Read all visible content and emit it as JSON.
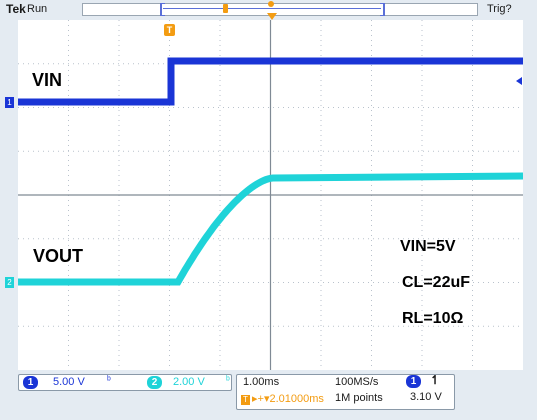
{
  "topbar": {
    "brand": "Tek",
    "run_state": "Run",
    "trigger_state": "Trig?"
  },
  "markers": {
    "trigger_time_marker": "T",
    "ch1_ground": "1",
    "ch2_ground": "2"
  },
  "annotations": {
    "vin_label": "VIN",
    "vout_label": "VOUT",
    "condition_vin": "VIN=5V",
    "condition_cl": "CL=22uF",
    "condition_rl": "RL=10Ω"
  },
  "readout": {
    "ch1": {
      "badge": "1",
      "scale": "5.00 V",
      "bw_symbol": "ᵇ"
    },
    "ch2": {
      "badge": "2",
      "scale": "2.00 V",
      "bw_symbol": "ᵇ"
    },
    "horizontal": {
      "time_div": "1.00ms",
      "sample_rate": "100MS/s",
      "trigger_position": "▸+▾2.01000ms",
      "record_length": "1M points",
      "tbadge": "T"
    },
    "trigger": {
      "source_badge": "1",
      "slope": "↿",
      "level": "3.10 V"
    }
  },
  "colors": {
    "ch1": "#1a35d6",
    "ch2": "#1fd3d8",
    "trigger": "#f39c12",
    "background": "#e4ebf2"
  }
}
